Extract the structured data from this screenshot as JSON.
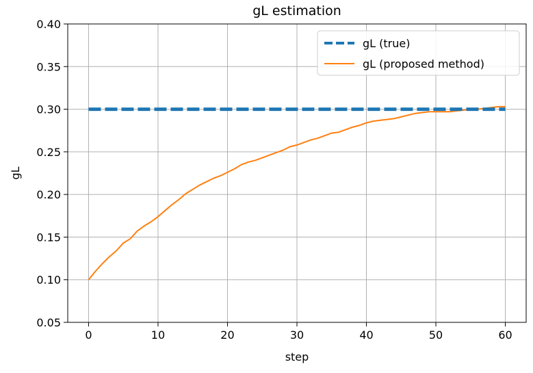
{
  "chart_data": {
    "type": "line",
    "title": "gL estimation",
    "xlabel": "step",
    "ylabel": "gL",
    "xlim": [
      -3,
      63
    ],
    "ylim": [
      0.05,
      0.4
    ],
    "xticks": [
      0,
      10,
      20,
      30,
      40,
      50,
      60
    ],
    "yticks": [
      0.05,
      0.1,
      0.15,
      0.2,
      0.25,
      0.3,
      0.35,
      0.4
    ],
    "ytick_labels": [
      "0.05",
      "0.10",
      "0.15",
      "0.20",
      "0.25",
      "0.30",
      "0.35",
      "0.40"
    ],
    "grid": true,
    "legend_position": "upper-right",
    "series": [
      {
        "name": "gL (true)",
        "style": "dashed",
        "color": "#1f77b4",
        "x": [
          0,
          60
        ],
        "y": [
          0.3,
          0.3
        ]
      },
      {
        "name": "gL (proposed method)",
        "style": "solid",
        "color": "#ff7f0e",
        "x": [
          0,
          1,
          2,
          3,
          4,
          5,
          6,
          7,
          8,
          9,
          10,
          11,
          12,
          13,
          14,
          15,
          16,
          17,
          18,
          19,
          20,
          21,
          22,
          23,
          24,
          25,
          26,
          27,
          28,
          29,
          30,
          31,
          32,
          33,
          34,
          35,
          36,
          37,
          38,
          39,
          40,
          41,
          42,
          43,
          44,
          45,
          46,
          47,
          48,
          49,
          50,
          51,
          52,
          53,
          54,
          55,
          56,
          57,
          58,
          59,
          60
        ],
        "y": [
          0.1,
          0.11,
          0.119,
          0.127,
          0.134,
          0.143,
          0.148,
          0.157,
          0.163,
          0.168,
          0.174,
          0.181,
          0.188,
          0.194,
          0.201,
          0.206,
          0.211,
          0.215,
          0.219,
          0.222,
          0.226,
          0.23,
          0.235,
          0.238,
          0.24,
          0.243,
          0.246,
          0.249,
          0.252,
          0.256,
          0.258,
          0.261,
          0.264,
          0.266,
          0.269,
          0.272,
          0.273,
          0.276,
          0.279,
          0.281,
          0.284,
          0.286,
          0.287,
          0.288,
          0.289,
          0.291,
          0.293,
          0.295,
          0.296,
          0.297,
          0.297,
          0.297,
          0.297,
          0.298,
          0.299,
          0.3,
          0.3,
          0.301,
          0.302,
          0.303,
          0.303
        ]
      }
    ]
  }
}
